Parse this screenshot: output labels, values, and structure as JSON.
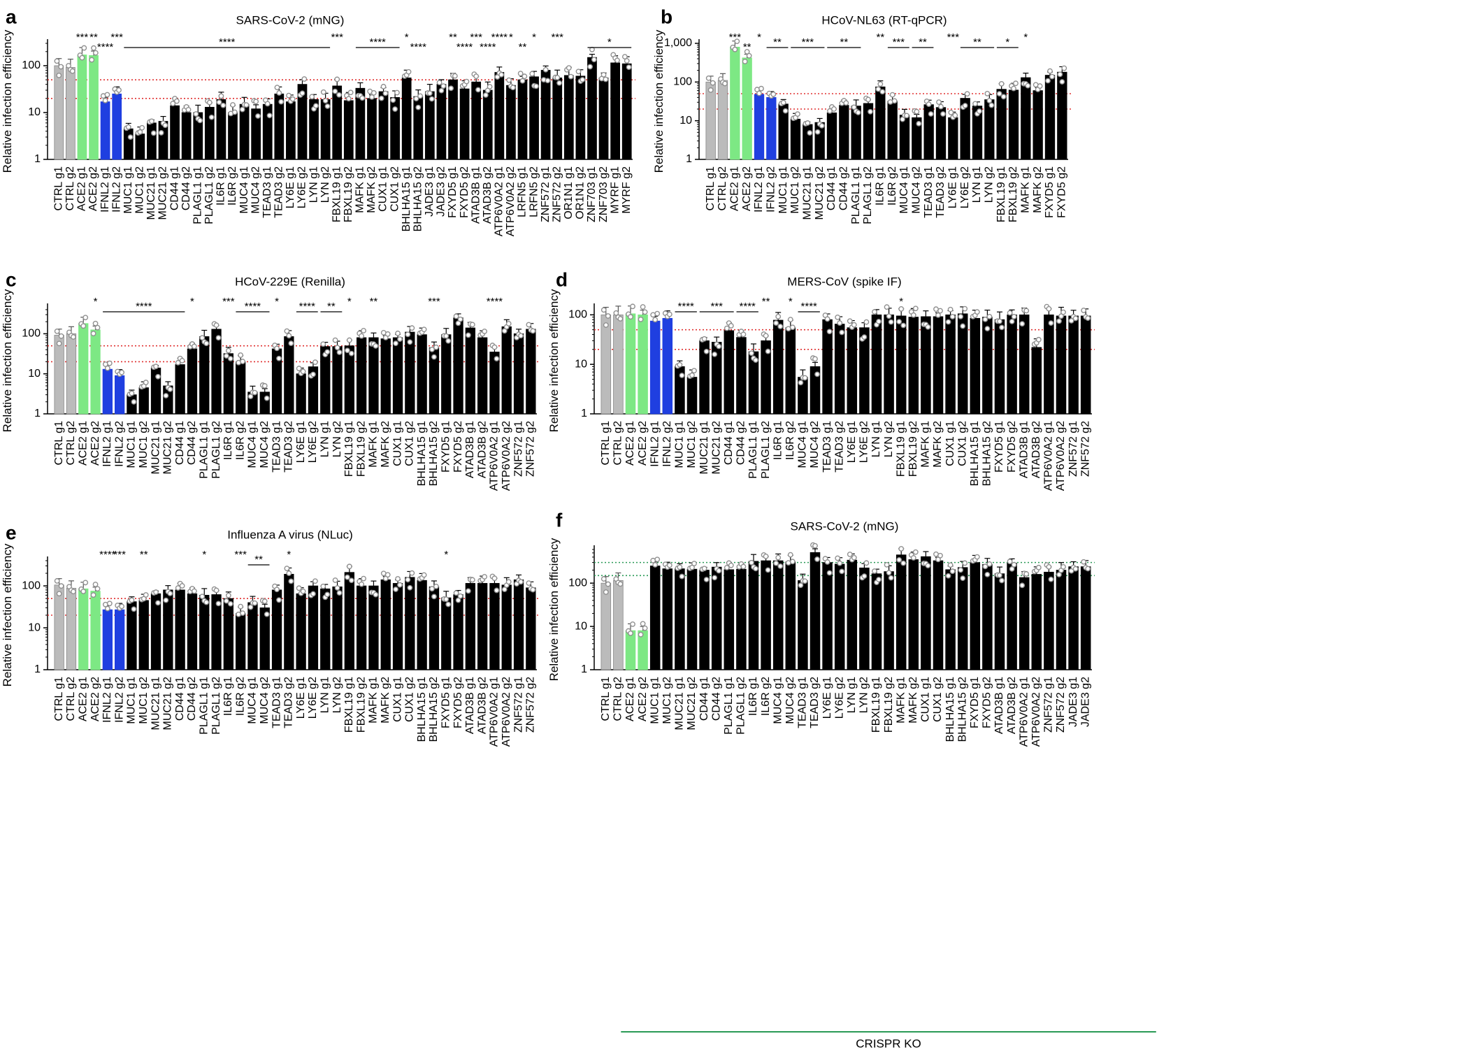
{
  "colors": {
    "ctrl": "#bbbbbb",
    "ace2": "#7de884",
    "ifnl2": "#1f3fe0",
    "ko": "#000000",
    "dot": "#909090",
    "redline": "#e03030",
    "greenline": "#2a9a55",
    "bracket": "#2a9a55"
  },
  "panels": [
    {
      "letter": "a",
      "title": "SARS-CoV-2 (mNG)",
      "ylabel": "Relative infection efficiency",
      "scale": "log",
      "ylim": [
        1,
        300
      ],
      "ticks": [
        {
          "v": 1,
          "l": "1"
        },
        {
          "v": 10,
          "l": "10"
        },
        {
          "v": 100,
          "l": "100"
        }
      ],
      "thresholds": [
        50,
        20
      ],
      "threshold_style": "red",
      "categories": [
        "CTRL g1",
        "CTRL g2",
        "ACE2 g1",
        "ACE2 g2",
        "IFNL2 g1",
        "IFNL2 g2",
        "MUC1 g1",
        "MUC1 g2",
        "MUC21 g1",
        "MUC21 g2",
        "CD44 g1",
        "CD44 g2",
        "PLAGL1 g1",
        "PLAGL1 g2",
        "IL6R g1",
        "IL6R g2",
        "MUC4 g1",
        "MUC4 g2",
        "TEAD3 g1",
        "TEAD3 g2",
        "LY6E g1",
        "LY6E g2",
        "LYN g1",
        "LYN g2",
        "FBXL19 g1",
        "FBXL19 g2",
        "MAFK g1",
        "MAFK g2",
        "CUX1 g1",
        "CUX1 g2",
        "BHLHA15 g1",
        "BHLHA15 g2",
        "JADE3 g1",
        "JADE3 g2",
        "FXYD5 g1",
        "FXYD5 g2",
        "ATAD3B g1",
        "ATAD3B g2",
        "ATP6V0A2 g1",
        "ATP6V0A2 g2",
        "LRFN5 g1",
        "LRFN5 g2",
        "ZNF572 g1",
        "ZNF572 g2",
        "OR1N1 g1",
        "OR1N1 g2",
        "ZNF703 g1",
        "ZNF703 g2",
        "MYRF g1",
        "MYRF g2"
      ],
      "values": [
        100,
        92,
        170,
        165,
        17,
        25,
        4.5,
        3.5,
        6,
        6.5,
        14,
        10,
        10,
        13,
        19,
        10,
        15,
        12,
        15,
        25,
        17,
        40,
        19,
        19,
        37,
        18,
        33,
        20,
        28,
        21,
        55,
        22,
        28,
        40,
        50,
        32,
        45,
        30,
        72,
        38,
        50,
        58,
        80,
        55,
        62,
        60,
        150,
        55,
        115,
        110
      ],
      "stars": [
        {
          "c": 2,
          "t": "***",
          "r": 0
        },
        {
          "c": 3,
          "t": "**",
          "r": 0
        },
        {
          "c": 4,
          "t": "****",
          "r": 1
        },
        {
          "c": 5,
          "t": "***",
          "r": 0
        },
        {
          "c": 24,
          "t": "***",
          "r": 0
        },
        {
          "c": 30,
          "t": "*",
          "r": 0
        },
        {
          "c": 31,
          "t": "****",
          "r": 1
        },
        {
          "c": 34,
          "t": "**",
          "r": 0
        },
        {
          "c": 35,
          "t": "****",
          "r": 1
        },
        {
          "c": 36,
          "t": "***",
          "r": 0
        },
        {
          "c": 37,
          "t": "****",
          "r": 1
        },
        {
          "c": 38,
          "t": "****",
          "r": 0
        },
        {
          "c": 39,
          "t": "*",
          "r": 0
        },
        {
          "c": 40,
          "t": "**",
          "r": 1
        },
        {
          "c": 41,
          "t": "*",
          "r": 0
        },
        {
          "c": 43,
          "t": "***",
          "r": 0
        }
      ],
      "spans": [
        {
          "a": 6,
          "b": 23,
          "t": "****"
        },
        {
          "a": 26,
          "b": 29,
          "t": "****"
        },
        {
          "a": 46,
          "b": 49,
          "t": "*"
        }
      ]
    },
    {
      "letter": "b",
      "title": "HCoV-NL63 (RT-qPCR)",
      "ylabel": "Relative infection efficiency",
      "scale": "log",
      "ylim": [
        1,
        1000
      ],
      "ticks": [
        {
          "v": 1,
          "l": "1"
        },
        {
          "v": 10,
          "l": "10"
        },
        {
          "v": 100,
          "l": "100"
        },
        {
          "v": 1000,
          "l": "1,000"
        }
      ],
      "thresholds": [
        50,
        20
      ],
      "threshold_style": "red",
      "categories": [
        "CTRL g1",
        "CTRL g2",
        "ACE2 g1",
        "ACE2 g2",
        "IFNL2 g1",
        "IFNL2 g2",
        "MUC1 g1",
        "MUC1 g2",
        "MUC21 g1",
        "MUC21 g2",
        "CD44 g1",
        "CD44 g2",
        "PLAGL1 g1",
        "PLAGL1 g2",
        "IL6R g1",
        "IL6R g2",
        "MUC4 g1",
        "MUC4 g2",
        "TEAD3 g1",
        "TEAD3 g2",
        "LY6E g1",
        "LY6E g2",
        "LYN g1",
        "LYN g2",
        "FBXL19 g1",
        "FBXL19 g2",
        "MAFK g1",
        "MAFK g2",
        "FXYD5 g1",
        "FXYD5 g2"
      ],
      "values": [
        100,
        110,
        800,
        420,
        48,
        40,
        27,
        11,
        8,
        9,
        16,
        25,
        24,
        28,
        75,
        32,
        14,
        12,
        26,
        22,
        12,
        38,
        24,
        35,
        65,
        62,
        130,
        60,
        150,
        180
      ],
      "stars": [
        {
          "c": 2,
          "t": "***",
          "r": 0
        },
        {
          "c": 3,
          "t": "**",
          "r": 1
        },
        {
          "c": 4,
          "t": "*",
          "r": 0
        },
        {
          "c": 14,
          "t": "**",
          "r": 0
        },
        {
          "c": 20,
          "t": "***",
          "r": 0
        },
        {
          "c": 26,
          "t": "*",
          "r": 0
        }
      ],
      "spans": [
        {
          "a": 5,
          "b": 6,
          "t": "**"
        },
        {
          "a": 7,
          "b": 9,
          "t": "***"
        },
        {
          "a": 10,
          "b": 12,
          "t": "**"
        },
        {
          "a": 15,
          "b": 16,
          "t": "***"
        },
        {
          "a": 17,
          "b": 18,
          "t": "**"
        },
        {
          "a": 21,
          "b": 23,
          "t": "**"
        },
        {
          "a": 24,
          "b": 25,
          "t": "*"
        }
      ]
    },
    {
      "letter": "c",
      "title": "HCoV-229E (Renilla)",
      "ylabel": "Relative infection efficiency",
      "scale": "log",
      "ylim": [
        1,
        450
      ],
      "ticks": [
        {
          "v": 1,
          "l": "1"
        },
        {
          "v": 10,
          "l": "10"
        },
        {
          "v": 100,
          "l": "100"
        }
      ],
      "thresholds": [
        50,
        20
      ],
      "threshold_style": "red",
      "categories": [
        "CTRL g1",
        "CTRL g2",
        "ACE2 g1",
        "ACE2 g2",
        "IFNL2 g1",
        "IFNL2 g2",
        "MUC1 g1",
        "MUC1 g2",
        "MUC21 g1",
        "MUC21 g2",
        "CD44 g1",
        "CD44 g2",
        "PLAGL1 g1",
        "PLAGL1 g2",
        "IL6R g1",
        "IL6R g2",
        "MUC4 g1",
        "MUC4 g2",
        "TEAD3 g1",
        "TEAD3 g2",
        "LY6E g1",
        "LY6E g2",
        "LYN g1",
        "LYN g2",
        "FBXL19 g1",
        "FBXL19 g2",
        "MAFK g1",
        "MAFK g2",
        "CUX1 g1",
        "CUX1 g2",
        "BHLHA15 g1",
        "BHLHA15 g2",
        "FXYD5 g1",
        "FXYD5 g2",
        "ATAD3B g1",
        "ATAD3B g2",
        "ATP6V0A2 g1",
        "ATP6V0A2 g2",
        "ZNF572 g1",
        "ZNF572 g2"
      ],
      "values": [
        92,
        100,
        180,
        125,
        13,
        9,
        3,
        4.5,
        14,
        5,
        17,
        42,
        85,
        130,
        32,
        20,
        3.5,
        3.5,
        42,
        85,
        10,
        15,
        48,
        48,
        50,
        80,
        80,
        75,
        80,
        110,
        95,
        45,
        95,
        250,
        140,
        80,
        35,
        150,
        100,
        130
      ],
      "stars": [
        {
          "c": 3,
          "t": "*",
          "r": 0
        },
        {
          "c": 11,
          "t": "*",
          "r": 0
        },
        {
          "c": 14,
          "t": "***",
          "r": 0
        },
        {
          "c": 18,
          "t": "*",
          "r": 0
        },
        {
          "c": 24,
          "t": "*",
          "r": 0
        },
        {
          "c": 26,
          "t": "**",
          "r": 0
        },
        {
          "c": 31,
          "t": "***",
          "r": 0
        },
        {
          "c": 36,
          "t": "****",
          "r": 0
        }
      ],
      "spans": [
        {
          "a": 4,
          "b": 10,
          "t": "****"
        },
        {
          "a": 15,
          "b": 17,
          "t": "****"
        },
        {
          "a": 20,
          "b": 21,
          "t": "****"
        },
        {
          "a": 22,
          "b": 23,
          "t": "**"
        }
      ]
    },
    {
      "letter": "d",
      "title": "MERS-CoV (spike IF)",
      "ylabel": "Relative infection efficiency",
      "scale": "log",
      "ylim": [
        1,
        140
      ],
      "ticks": [
        {
          "v": 1,
          "l": "1"
        },
        {
          "v": 10,
          "l": "10"
        },
        {
          "v": 100,
          "l": "100"
        }
      ],
      "thresholds": [
        50,
        20
      ],
      "threshold_style": "red",
      "categories": [
        "CTRL g1",
        "CTRL g2",
        "ACE2 g1",
        "ACE2 g2",
        "IFNL2 g1",
        "IFNL2 g2",
        "MUC1 g1",
        "MUC1 g2",
        "MUC21 g1",
        "MUC21 g2",
        "CD44 g1",
        "CD44 g2",
        "PLAGL1 g1",
        "PLAGL1 g2",
        "IL6R g1",
        "IL6R g2",
        "MUC4 g1",
        "MUC4 g2",
        "TEAD3 g1",
        "TEAD3 g2",
        "LY6E g1",
        "LY6E g2",
        "LYN g1",
        "LYN g2",
        "FBXL19 g1",
        "FBXL19 g2",
        "MAFK g1",
        "MAFK g2",
        "CUX1 g1",
        "CUX1 g2",
        "BHLHA15 g1",
        "BHLHA15 g2",
        "FXYD5 g1",
        "FXYD5 g2",
        "ATAD3B g1",
        "ATAD3B g2",
        "ATP6V0A2 g1",
        "ATP6V0A2 g2",
        "ZNF572 g1",
        "ZNF572 g2"
      ],
      "values": [
        100,
        100,
        105,
        100,
        75,
        85,
        9,
        5.5,
        30,
        28,
        48,
        35,
        18,
        30,
        78,
        55,
        5.5,
        9,
        80,
        65,
        55,
        55,
        100,
        100,
        95,
        90,
        92,
        92,
        100,
        105,
        85,
        90,
        80,
        100,
        100,
        22,
        100,
        95,
        95,
        95
      ],
      "stars": [
        {
          "c": 13,
          "t": "**",
          "r": 0
        },
        {
          "c": 15,
          "t": "*",
          "r": 0
        },
        {
          "c": 24,
          "t": "*",
          "r": 0
        }
      ],
      "spans": [
        {
          "a": 6,
          "b": 7,
          "t": "****"
        },
        {
          "a": 8,
          "b": 10,
          "t": "***"
        },
        {
          "a": 11,
          "b": 12,
          "t": "****"
        },
        {
          "a": 16,
          "b": 17,
          "t": "****"
        }
      ]
    },
    {
      "letter": "e",
      "title": "Influenza A virus (NLuc)",
      "ylabel": "Relative infection efficiency",
      "scale": "log",
      "ylim": [
        1,
        400
      ],
      "ticks": [
        {
          "v": 1,
          "l": "1"
        },
        {
          "v": 10,
          "l": "10"
        },
        {
          "v": 100,
          "l": "100"
        }
      ],
      "thresholds": [
        50,
        20
      ],
      "threshold_style": "red",
      "categories": [
        "CTRL g1",
        "CTRL g2",
        "ACE2 g1",
        "ACE2 g2",
        "IFNL2 g1",
        "IFNL2 g2",
        "MUC1 g1",
        "MUC1 g2",
        "MUC21 g1",
        "MUC21 g2",
        "CD44 g1",
        "CD44 g2",
        "PLAGL1 g1",
        "PLAGL1 g2",
        "IL6R g1",
        "IL6R g2",
        "MUC4 g1",
        "MUC4 g2",
        "TEAD3 g1",
        "TEAD3 g2",
        "LY6E g1",
        "LY6E g2",
        "LYN g1",
        "LYN g2",
        "FBXL19 g1",
        "FBXL19 g2",
        "MAFK g1",
        "MAFK g2",
        "CUX1 g1",
        "CUX1 g2",
        "BHLHA15 g1",
        "BHLHA15 g2",
        "FXYD5 g1",
        "FXYD5 g2",
        "ATAD3B g1",
        "ATAD3B g2",
        "ATP6V0A2 g1",
        "ATP6V0A2 g2",
        "ZNF572 g1",
        "ZNF572 g2"
      ],
      "values": [
        105,
        88,
        85,
        75,
        27,
        27,
        42,
        45,
        65,
        80,
        80,
        65,
        60,
        62,
        50,
        22,
        40,
        30,
        80,
        190,
        65,
        100,
        85,
        95,
        210,
        100,
        100,
        140,
        115,
        160,
        135,
        95,
        52,
        62,
        115,
        115,
        115,
        105,
        140,
        90
      ],
      "stars": [
        {
          "c": 4,
          "t": "****",
          "r": 0
        },
        {
          "c": 5,
          "t": "***",
          "r": 0
        },
        {
          "c": 7,
          "t": "**",
          "r": 0
        },
        {
          "c": 12,
          "t": "*",
          "r": 0
        },
        {
          "c": 15,
          "t": "***",
          "r": 0
        },
        {
          "c": 19,
          "t": "*",
          "r": 0
        },
        {
          "c": 32,
          "t": "*",
          "r": 0
        }
      ],
      "spans": [
        {
          "a": 16,
          "b": 17,
          "t": "**"
        }
      ]
    },
    {
      "letter": "f",
      "title": "SARS-CoV-2 (mNG)",
      "ylabel": "Relative infection efficiency",
      "scale": "log",
      "ylim": [
        1,
        600
      ],
      "ticks": [
        {
          "v": 1,
          "l": "1"
        },
        {
          "v": 10,
          "l": "10"
        },
        {
          "v": 100,
          "l": "100"
        }
      ],
      "thresholds": [
        300,
        150
      ],
      "threshold_style": "green",
      "bracket": {
        "label": "CRISPR KO",
        "from": 2,
        "to": 43
      },
      "categories": [
        "CTRL g1",
        "CTRL g2",
        "ACE2 g1",
        "ACE2 g2",
        "MUC1 g1",
        "MUC1 g2",
        "MUC21 g1",
        "MUC21 g2",
        "CD44 g1",
        "CD44 g2",
        "PLAGL1 g1",
        "PLAGL1 g2",
        "IL6R g1",
        "IL6R g2",
        "MUC4 g1",
        "MUC4 g2",
        "TEAD3 g1",
        "TEAD3 g2",
        "LY6E g1",
        "LY6E g2",
        "LYN g1",
        "LYN g2",
        "FBXL19 g1",
        "FBXL19 g2",
        "MAFK g1",
        "MAFK g2",
        "CUX1 g1",
        "CUX1 g2",
        "BHLHA15 g1",
        "BHLHA15 g2",
        "FXYD5 g1",
        "FXYD5 g2",
        "ATAD3B g1",
        "ATAD3B g2",
        "ATP6V0A2 g1",
        "ATP6V0A2 g2",
        "ZNF572 g1",
        "ZNF572 g2",
        "JADE3 g1",
        "JADE3 g2"
      ],
      "values": [
        100,
        115,
        8,
        8,
        250,
        215,
        215,
        210,
        200,
        235,
        205,
        210,
        320,
        330,
        330,
        310,
        115,
        510,
        300,
        275,
        340,
        225,
        165,
        185,
        450,
        350,
        410,
        330,
        205,
        230,
        300,
        270,
        165,
        290,
        135,
        160,
        180,
        200,
        240,
        240
      ],
      "stars": [],
      "spans": []
    }
  ]
}
